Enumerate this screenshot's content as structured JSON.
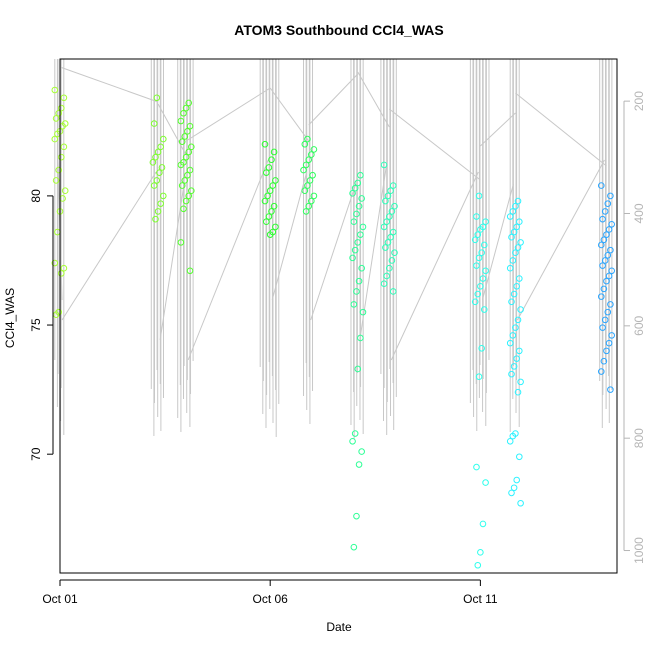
{
  "chart_data": {
    "type": "scatter",
    "title": "ATOM3 Southbound CCl4_WAS",
    "xlabel": "Date",
    "ylabel": "CCl4_WAS",
    "x_ticks": [
      {
        "value": "2017-10-01",
        "label": "Oct 01"
      },
      {
        "value": "2017-10-06",
        "label": "Oct 06"
      },
      {
        "value": "2017-10-11",
        "label": "Oct 11"
      }
    ],
    "y_ticks": [
      70,
      75,
      80
    ],
    "secondary_axis": {
      "label": "",
      "ticks": [
        200,
        400,
        600,
        800,
        1000
      ],
      "color": "#b5b5b5"
    },
    "xlim": [
      "2017-10-01T00:00",
      "2017-10-14T06:00"
    ],
    "ylim": [
      65.4,
      85.3
    ],
    "y2lim": [
      1040,
      125
    ],
    "grid": false,
    "legend": "none",
    "colors": {
      "trace": "#c8c8c8",
      "frame": "#000000",
      "palette_start": "#a6ff33",
      "palette_end": "#1a8cff"
    },
    "profile_times": [
      "2017-10-01T00:00",
      "2017-10-03T08:00",
      "2017-10-04T00:00",
      "2017-10-06T00:00",
      "2017-10-06T22:00",
      "2017-10-08T02:00",
      "2017-10-08T20:00",
      "2017-10-11T00:00",
      "2017-10-11T20:00",
      "2017-10-14T00:00"
    ],
    "series": [
      {
        "time": "2017-10-01T00:00",
        "color": "#a6ff33",
        "values": [
          84.1,
          83.8,
          83.4,
          83.2,
          83.0,
          82.8,
          82.7,
          82.5,
          82.4,
          82.2,
          81.9,
          81.5,
          81.0,
          80.6,
          80.2,
          79.9,
          79.4,
          78.6,
          77.4,
          77.2,
          77.0,
          75.5,
          75.4
        ]
      },
      {
        "time": "2017-10-03T08:00",
        "color": "#7dff2e",
        "values": [
          83.8,
          82.8,
          82.2,
          81.9,
          81.7,
          81.5,
          81.3,
          81.1,
          80.9,
          80.6,
          80.4,
          80.0,
          79.7,
          79.4,
          79.1
        ]
      },
      {
        "time": "2017-10-04T00:00",
        "color": "#52ff2c",
        "values": [
          83.6,
          83.4,
          83.2,
          82.9,
          82.7,
          82.5,
          82.3,
          82.1,
          81.9,
          81.7,
          81.5,
          81.3,
          81.2,
          81.0,
          80.8,
          80.6,
          80.4,
          80.2,
          80.0,
          79.8,
          79.5,
          78.2,
          77.1
        ]
      },
      {
        "time": "2017-10-06T00:00",
        "color": "#2bff2f",
        "values": [
          82.0,
          81.7,
          81.4,
          81.1,
          80.9,
          80.6,
          80.4,
          80.2,
          80.0,
          79.8,
          79.6,
          79.4,
          79.2,
          79.0,
          78.8,
          78.6,
          78.5
        ]
      },
      {
        "time": "2017-10-06T22:00",
        "color": "#2dff5c",
        "values": [
          82.2,
          82.0,
          81.8,
          81.6,
          81.4,
          81.2,
          81.0,
          80.8,
          80.6,
          80.4,
          80.2,
          80.0,
          79.8,
          79.6,
          79.4
        ]
      },
      {
        "time": "2017-10-08T02:00",
        "color": "#2dff96",
        "values": [
          80.8,
          80.5,
          80.3,
          80.1,
          79.9,
          79.6,
          79.3,
          79.0,
          78.8,
          78.5,
          78.2,
          77.9,
          77.6,
          77.2,
          76.7,
          76.3,
          75.8,
          75.5,
          74.5,
          73.3,
          70.8,
          70.5,
          70.1,
          69.6,
          67.6,
          66.4
        ]
      },
      {
        "time": "2017-10-08T20:00",
        "color": "#2dffb9",
        "values": [
          81.2,
          80.4,
          80.2,
          80.0,
          79.8,
          79.6,
          79.4,
          79.2,
          79.0,
          78.8,
          78.6,
          78.4,
          78.2,
          78.0,
          77.8,
          77.5,
          77.2,
          76.9,
          76.6,
          76.3
        ]
      },
      {
        "time": "2017-10-11T00:00",
        "color": "#2effec",
        "values": [
          80.0,
          79.2,
          79.0,
          78.8,
          78.7,
          78.5,
          78.3,
          78.1,
          77.8,
          77.6,
          77.3,
          77.1,
          76.8,
          76.5,
          76.2,
          75.9,
          75.6,
          74.1,
          73.0,
          69.5,
          68.9,
          67.3,
          66.2,
          65.7
        ]
      },
      {
        "time": "2017-10-11T20:00",
        "color": "#2ef2ff",
        "values": [
          79.8,
          79.6,
          79.4,
          79.2,
          79.0,
          78.8,
          78.6,
          78.4,
          78.2,
          78.0,
          77.8,
          77.5,
          77.2,
          76.8,
          76.5,
          76.2,
          75.9,
          75.6,
          75.2,
          74.9,
          74.6,
          74.3,
          74.0,
          73.7,
          73.4,
          73.1,
          72.8,
          72.4,
          70.8,
          70.7,
          70.5,
          69.9,
          69.0,
          68.7,
          68.5,
          68.1
        ]
      },
      {
        "time": "2017-10-14T00:00",
        "color": "#2ba6ff",
        "values": [
          80.4,
          80.0,
          79.7,
          79.4,
          79.1,
          78.9,
          78.7,
          78.5,
          78.3,
          78.1,
          77.9,
          77.7,
          77.5,
          77.3,
          77.1,
          76.9,
          76.7,
          76.4,
          76.1,
          75.8,
          75.5,
          75.2,
          74.9,
          74.6,
          74.3,
          74.0,
          73.6,
          73.2,
          72.5
        ]
      }
    ]
  }
}
